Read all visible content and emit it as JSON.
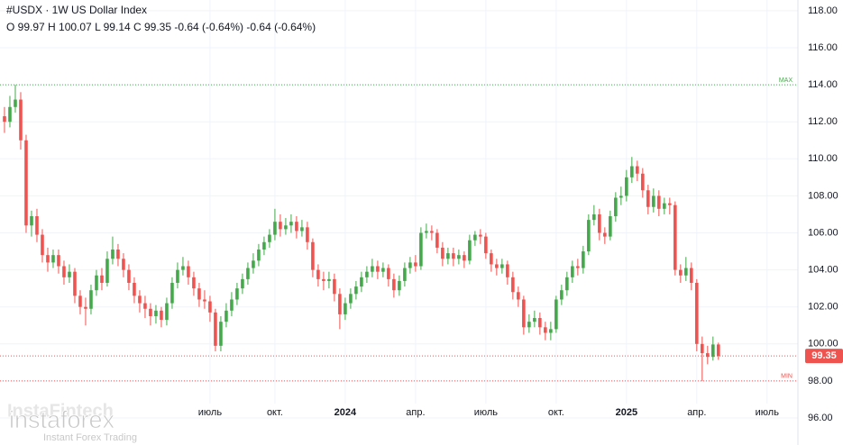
{
  "chart_data": {
    "type": "candlestick",
    "title": "#USDX · 1W US Dollar Index",
    "legend": "O 99.97 H 100.07 L 99.14 C 99.35 -0.64 (-0.64%) -0.64 (-0.64%)",
    "watermark": {
      "brand": "instaforex",
      "tagline": "Instant Forex Trading",
      "faint": "InstaFintech"
    },
    "up_color": "#43a94a",
    "down_color": "#ef5350",
    "grid": true,
    "xlim": [
      -0.83,
      146.7
    ],
    "xticks": [
      {
        "value": 38,
        "label": "июль"
      },
      {
        "value": 50,
        "label": "окт."
      },
      {
        "value": 63,
        "label": "2024"
      },
      {
        "value": 76,
        "label": "апр."
      },
      {
        "value": 89,
        "label": "июль"
      },
      {
        "value": 102,
        "label": "окт."
      },
      {
        "value": 115,
        "label": "2025"
      },
      {
        "value": 128,
        "label": "апр."
      },
      {
        "value": 141,
        "label": "июль"
      }
    ],
    "ylim": [
      94.54,
      118.58
    ],
    "yticks": [
      {
        "value": 96,
        "label": "96.00"
      },
      {
        "value": 98,
        "label": "98.00"
      },
      {
        "value": 100,
        "label": "100.00"
      },
      {
        "value": 102,
        "label": "102.00"
      },
      {
        "value": 104,
        "label": "104.00"
      },
      {
        "value": 106,
        "label": "106.00"
      },
      {
        "value": 108,
        "label": "108.00"
      },
      {
        "value": 110,
        "label": "110.00"
      },
      {
        "value": 112,
        "label": "112.00"
      },
      {
        "value": 114,
        "label": "114.00"
      },
      {
        "value": 116,
        "label": "116.00"
      },
      {
        "value": 118,
        "label": "118.00"
      }
    ],
    "levels": [
      {
        "label": "MAX",
        "value": 114.0,
        "color": "#43a94a"
      },
      {
        "label": "MIN",
        "value": 98.0,
        "color": "#ef5350"
      }
    ],
    "open": [
      112.3,
      112.0,
      112.8,
      113.2,
      111.0,
      106.4,
      106.9,
      105.9,
      104.8,
      104.4,
      104.8,
      104.2,
      103.6,
      103.9,
      102.6,
      102.0,
      101.9,
      102.9,
      103.7,
      103.3,
      104.6,
      105.1,
      104.6,
      104.0,
      103.3,
      102.6,
      102.2,
      101.9,
      101.5,
      101.8,
      101.3,
      102.2,
      103.3,
      104.0,
      104.2,
      103.6,
      103.0,
      102.4,
      102.3,
      101.7,
      99.9,
      101.2,
      101.8,
      102.4,
      103.0,
      103.5,
      104.1,
      104.5,
      105.1,
      105.5,
      105.9,
      106.6,
      106.2,
      106.4,
      106.6,
      106.1,
      106.3,
      105.5,
      104.0,
      103.5,
      103.4,
      103.5,
      102.7,
      101.6,
      102.2,
      102.7,
      103.1,
      103.6,
      103.9,
      104.2,
      103.9,
      104.1,
      103.5,
      102.9,
      103.4,
      104.1,
      104.4,
      104.2,
      106.0,
      106.1,
      106.0,
      105.2,
      104.6,
      104.9,
      104.6,
      104.8,
      104.5,
      105.6,
      105.9,
      105.8,
      104.9,
      104.3,
      104.1,
      104.3,
      103.6,
      102.8,
      102.4,
      100.9,
      101.2,
      101.4,
      100.9,
      100.6,
      100.8,
      102.4,
      102.9,
      103.6,
      104.2,
      104.1,
      105.0,
      106.7,
      107.0,
      106.0,
      105.8,
      106.9,
      107.9,
      108.0,
      109.0,
      109.6,
      109.2,
      108.3,
      107.4,
      108.0,
      107.3,
      107.6,
      107.5,
      104.0,
      103.7,
      104.1,
      103.3,
      100.0,
      99.5,
      99.3,
      99.97
    ],
    "high": [
      112.8,
      113.4,
      114.0,
      113.6,
      111.3,
      107.2,
      107.3,
      106.2,
      105.2,
      105.1,
      105.1,
      104.5,
      104.3,
      104.1,
      102.9,
      102.5,
      103.2,
      104.0,
      104.1,
      105.0,
      105.8,
      105.4,
      104.9,
      104.3,
      103.6,
      102.9,
      102.6,
      102.2,
      102.1,
      102.0,
      102.5,
      103.6,
      104.4,
      104.7,
      104.5,
      103.9,
      103.3,
      102.9,
      102.6,
      101.9,
      101.5,
      102.2,
      102.8,
      103.3,
      103.8,
      104.4,
      104.9,
      105.4,
      105.8,
      106.2,
      107.3,
      107.0,
      106.8,
      107.0,
      106.9,
      106.7,
      106.6,
      105.7,
      104.3,
      103.9,
      103.9,
      103.8,
      103.0,
      102.5,
      103.0,
      103.4,
      103.9,
      104.2,
      104.6,
      104.5,
      104.4,
      104.3,
      103.8,
      103.7,
      104.4,
      104.7,
      104.8,
      106.3,
      106.5,
      106.4,
      106.2,
      105.5,
      105.2,
      105.2,
      105.1,
      105.0,
      105.9,
      106.1,
      106.2,
      106.0,
      105.1,
      104.6,
      104.6,
      104.5,
      103.9,
      103.1,
      102.6,
      101.6,
      101.8,
      101.7,
      101.2,
      101.2,
      102.6,
      103.2,
      103.9,
      104.5,
      104.6,
      105.3,
      107.0,
      107.5,
      107.3,
      106.3,
      107.2,
      108.2,
      108.5,
      109.4,
      110.1,
      109.9,
      109.5,
      108.6,
      108.4,
      108.3,
      107.9,
      107.9,
      107.7,
      104.3,
      104.7,
      104.4,
      103.5,
      100.4,
      99.9,
      100.4,
      100.07
    ],
    "low": [
      111.4,
      111.7,
      112.5,
      110.5,
      106.0,
      105.8,
      105.5,
      104.4,
      103.9,
      104.1,
      103.8,
      103.2,
      103.3,
      102.2,
      101.6,
      101.0,
      101.6,
      102.6,
      102.9,
      103.1,
      104.3,
      104.2,
      103.6,
      102.9,
      102.2,
      101.7,
      101.4,
      101.0,
      101.1,
      100.9,
      101.0,
      101.9,
      103.0,
      103.7,
      103.2,
      102.6,
      102.0,
      101.9,
      101.2,
      99.6,
      99.6,
      100.9,
      101.5,
      102.1,
      102.7,
      103.2,
      103.8,
      104.2,
      104.8,
      105.2,
      105.6,
      105.8,
      105.9,
      106.0,
      105.7,
      105.8,
      105.1,
      103.6,
      103.1,
      102.9,
      103.0,
      102.3,
      100.8,
      101.3,
      101.9,
      102.4,
      102.8,
      103.3,
      103.6,
      103.5,
      103.6,
      103.1,
      102.5,
      102.6,
      103.1,
      103.8,
      103.9,
      104.0,
      105.7,
      105.6,
      104.9,
      104.2,
      104.3,
      104.2,
      104.3,
      104.1,
      104.3,
      105.3,
      105.4,
      104.6,
      103.9,
      103.7,
      103.8,
      103.2,
      102.4,
      102.0,
      100.5,
      100.6,
      100.9,
      100.5,
      100.2,
      100.2,
      100.6,
      102.1,
      102.6,
      103.3,
      103.7,
      103.8,
      104.8,
      106.4,
      105.6,
      105.4,
      105.6,
      106.6,
      107.5,
      107.7,
      108.7,
      108.8,
      107.9,
      107.0,
      107.1,
      106.9,
      107.0,
      107.0,
      103.7,
      103.3,
      103.4,
      102.9,
      99.6,
      98.0,
      98.9,
      99.1,
      99.14
    ],
    "close": [
      112.0,
      112.8,
      113.2,
      111.0,
      106.4,
      106.9,
      105.9,
      104.8,
      104.4,
      104.8,
      104.2,
      103.6,
      103.9,
      102.6,
      102.0,
      101.9,
      102.9,
      103.7,
      103.3,
      104.6,
      105.1,
      104.6,
      104.0,
      103.3,
      102.6,
      102.2,
      101.9,
      101.5,
      101.8,
      101.3,
      102.2,
      103.3,
      104.0,
      104.2,
      103.6,
      103.0,
      102.4,
      102.3,
      101.7,
      99.9,
      101.2,
      101.8,
      102.4,
      103.0,
      103.5,
      104.1,
      104.5,
      105.1,
      105.5,
      105.9,
      106.6,
      106.2,
      106.4,
      106.6,
      106.1,
      106.3,
      105.5,
      104.0,
      103.5,
      103.4,
      103.5,
      102.7,
      101.6,
      102.2,
      102.7,
      103.1,
      103.6,
      103.9,
      104.2,
      103.9,
      104.1,
      103.5,
      102.9,
      103.4,
      104.1,
      104.4,
      104.2,
      106.0,
      106.1,
      106.0,
      105.2,
      104.6,
      104.9,
      104.6,
      104.8,
      104.5,
      105.6,
      105.9,
      105.8,
      104.9,
      104.3,
      104.1,
      104.3,
      103.6,
      102.8,
      102.4,
      100.9,
      101.2,
      101.4,
      100.9,
      100.6,
      100.8,
      102.4,
      102.9,
      103.6,
      104.2,
      104.1,
      105.0,
      106.7,
      107.0,
      106.0,
      105.8,
      106.9,
      107.9,
      108.0,
      109.0,
      109.6,
      109.2,
      108.3,
      107.4,
      108.0,
      107.3,
      107.6,
      107.5,
      104.0,
      103.7,
      104.1,
      103.3,
      100.0,
      99.5,
      99.3,
      99.97,
      99.35
    ]
  }
}
